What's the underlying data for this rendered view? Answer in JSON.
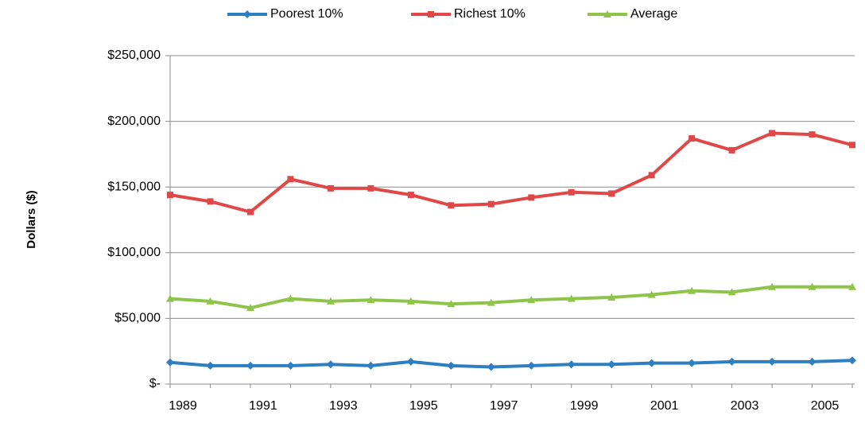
{
  "chart_data": {
    "type": "line",
    "categories": [
      "1989",
      null,
      "1991",
      null,
      "1993",
      null,
      "1995",
      null,
      "1997",
      null,
      "1999",
      null,
      "2001",
      null,
      "2003",
      null,
      "2005",
      null
    ],
    "series": [
      {
        "name": "Poorest 10%",
        "color": "#2e7fc1",
        "marker": "diamond",
        "values": [
          16500,
          14000,
          14000,
          14000,
          15000,
          14000,
          17000,
          14000,
          13000,
          14000,
          15000,
          15000,
          16000,
          16000,
          17000,
          17000,
          17000,
          18000
        ]
      },
      {
        "name": "Richest 10%",
        "color": "#e04848",
        "marker": "square",
        "values": [
          144000,
          139000,
          131000,
          156000,
          149000,
          149000,
          144000,
          136000,
          137000,
          142000,
          146000,
          145000,
          159000,
          187000,
          178000,
          191000,
          190000,
          182000
        ]
      },
      {
        "name": "Average",
        "color": "#8fc44a",
        "marker": "triangle",
        "values": [
          65000,
          63000,
          58000,
          65000,
          63000,
          64000,
          63000,
          61000,
          62000,
          64000,
          65000,
          66000,
          68000,
          71000,
          70000,
          74000,
          74000,
          74000
        ]
      }
    ],
    "y_label": "Dollars ($)",
    "ylim": [
      0,
      250000
    ],
    "yticks": [
      {
        "value": 0,
        "label": "$-"
      },
      {
        "value": 50000,
        "label": "$50,000"
      },
      {
        "value": 100000,
        "label": "$100,000"
      },
      {
        "value": 150000,
        "label": "$150,000"
      },
      {
        "value": 200000,
        "label": "$200,000"
      },
      {
        "value": 250000,
        "label": "$250,000"
      }
    ],
    "grid": true,
    "legend": "top"
  }
}
